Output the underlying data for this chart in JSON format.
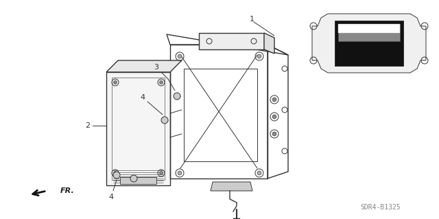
{
  "background_color": "#ffffff",
  "fig_width": 6.4,
  "fig_height": 3.19,
  "dpi": 100,
  "part_number": "SDR4-B1325",
  "line_color": "#333333",
  "line_width": 0.7,
  "callout_fontsize": 8,
  "pn_fontsize": 7,
  "pn_color": "#888888",
  "fr_fontsize": 8
}
